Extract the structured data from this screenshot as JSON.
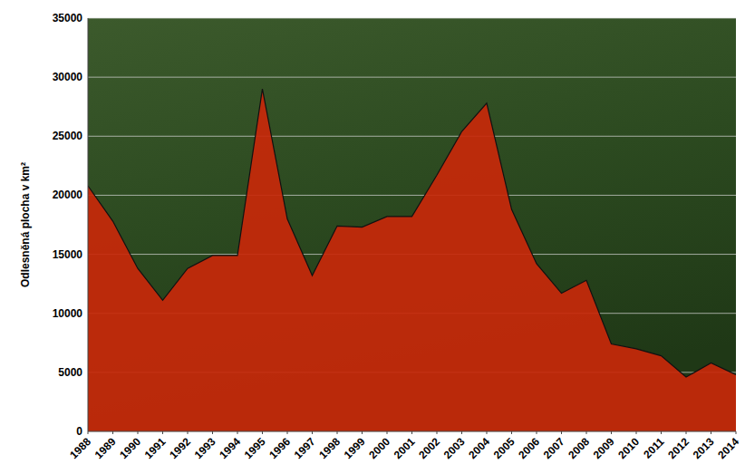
{
  "chart_data": {
    "type": "area",
    "y_label": "Odlesněná plocha v km²",
    "categories": [
      "1988",
      "1989",
      "1990",
      "1991",
      "1992",
      "1993",
      "1994",
      "1995",
      "1996",
      "1997",
      "1998",
      "1999",
      "2000",
      "2001",
      "2002",
      "2003",
      "2004",
      "2005",
      "2006",
      "2007",
      "2008",
      "2009",
      "2010",
      "2011",
      "2012",
      "2013",
      "2014"
    ],
    "values": [
      20800,
      17800,
      13800,
      11100,
      13800,
      14900,
      14900,
      29000,
      18000,
      13200,
      17400,
      17300,
      18200,
      18200,
      21700,
      25400,
      27800,
      18800,
      14200,
      11700,
      12800,
      7400,
      7000,
      6400,
      4600,
      5800,
      4800
    ],
    "color": "#c8280a",
    "ylim": [
      0,
      35000
    ],
    "yticks": [
      0,
      5000,
      10000,
      15000,
      20000,
      25000,
      30000,
      35000
    ],
    "grid": true
  }
}
